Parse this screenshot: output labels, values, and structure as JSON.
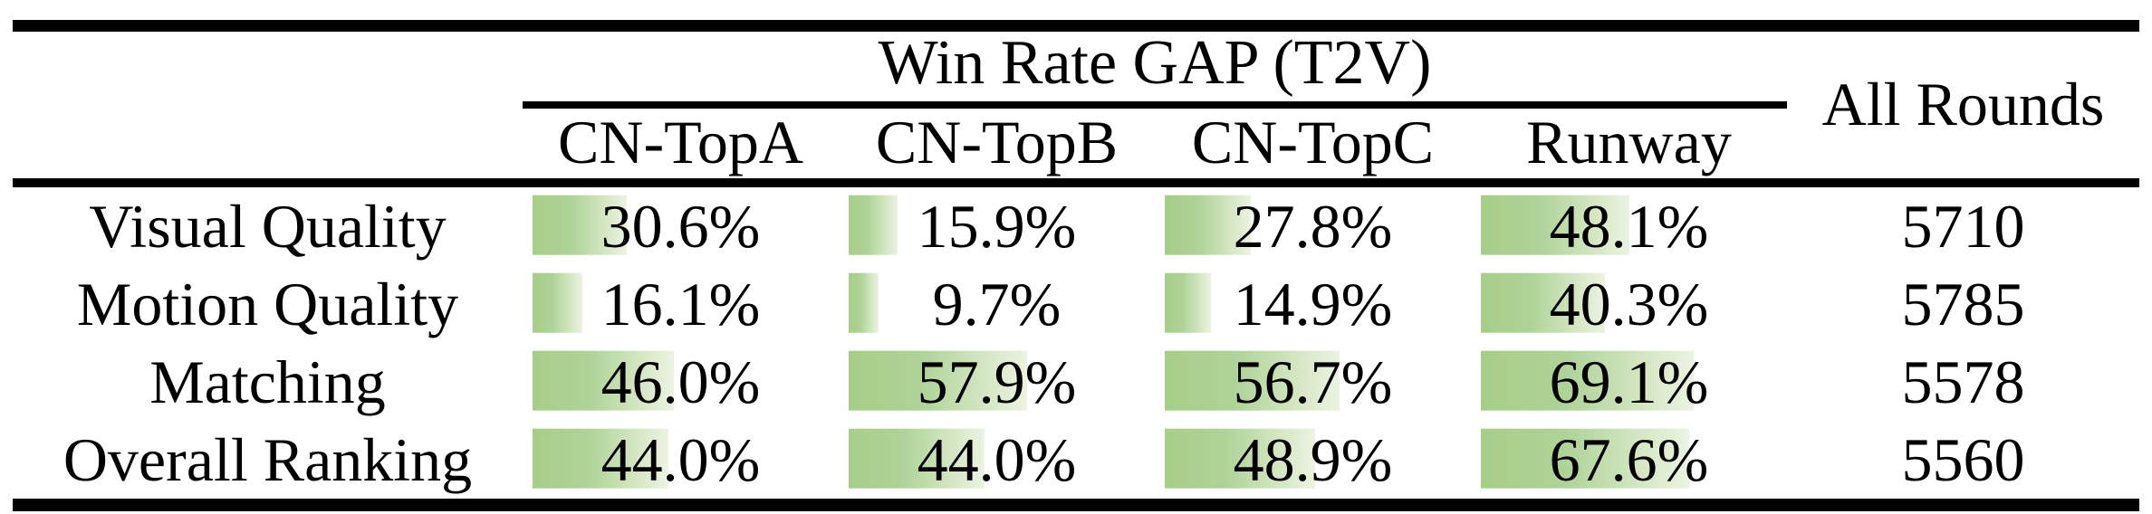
{
  "table": {
    "title": "Win Rate GAP (T2V)",
    "all_rounds_header": "All Rounds",
    "model_columns": [
      "CN-TopA",
      "CN-TopB",
      "CN-TopC",
      "Runway"
    ],
    "rows": [
      {
        "label": "Visual Quality",
        "values": [
          30.6,
          15.9,
          27.8,
          48.1
        ],
        "all_rounds": "5710"
      },
      {
        "label": "Motion Quality",
        "values": [
          16.1,
          9.7,
          14.9,
          40.3
        ],
        "all_rounds": "5785"
      },
      {
        "label": "Matching",
        "values": [
          46.0,
          57.9,
          56.7,
          69.1
        ],
        "all_rounds": "5578"
      },
      {
        "label": "Overall Ranking",
        "values": [
          44.0,
          44.0,
          48.9,
          67.6
        ],
        "all_rounds": "5560"
      }
    ],
    "bar_color": "#a6ce88",
    "bar_fade_color": "#ecf3e2",
    "rule_color": "#000000"
  },
  "chart_data": {
    "type": "table",
    "title": "Win Rate GAP (T2V)",
    "columns": [
      "CN-TopA",
      "CN-TopB",
      "CN-TopC",
      "Runway",
      "All Rounds"
    ],
    "rows": [
      {
        "label": "Visual Quality",
        "CN-TopA": 30.6,
        "CN-TopB": 15.9,
        "CN-TopC": 27.8,
        "Runway": 48.1,
        "All Rounds": 5710
      },
      {
        "label": "Motion Quality",
        "CN-TopA": 16.1,
        "CN-TopB": 9.7,
        "CN-TopC": 14.9,
        "Runway": 40.3,
        "All Rounds": 5785
      },
      {
        "label": "Matching",
        "CN-TopA": 46.0,
        "CN-TopB": 57.9,
        "CN-TopC": 56.7,
        "Runway": 69.1,
        "All Rounds": 5578
      },
      {
        "label": "Overall Ranking",
        "CN-TopA": 44.0,
        "CN-TopB": 44.0,
        "CN-TopC": 48.9,
        "Runway": 67.6,
        "All Rounds": 5560
      }
    ],
    "notes": "Percentage cells have left-aligned green gradient data bars proportional to value; serif booktabs-style table"
  }
}
